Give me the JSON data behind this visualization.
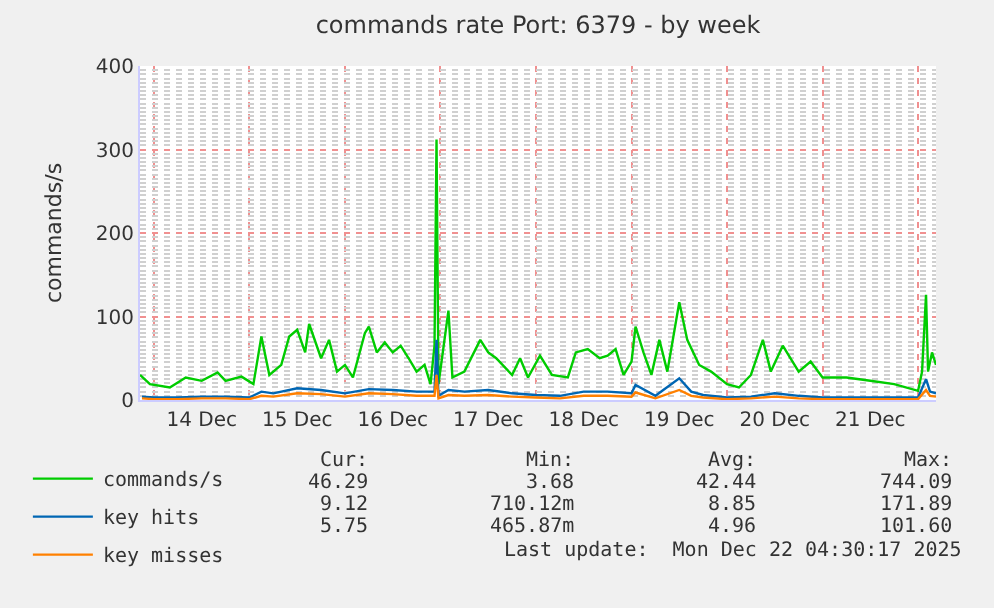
{
  "chart_data": {
    "type": "line",
    "title": "commands rate Port: 6379 - by week",
    "ylabel": "commands/s",
    "xlim": [
      "2025-12-13T20:30",
      "2025-12-22T04:30"
    ],
    "xticks": [
      {
        "value": "2025-12-14T12:00",
        "label": "14 Dec"
      },
      {
        "value": "2025-12-15T12:00",
        "label": "15 Dec"
      },
      {
        "value": "2025-12-16T12:00",
        "label": "16 Dec"
      },
      {
        "value": "2025-12-17T12:00",
        "label": "17 Dec"
      },
      {
        "value": "2025-12-18T12:00",
        "label": "18 Dec"
      },
      {
        "value": "2025-12-19T12:00",
        "label": "19 Dec"
      },
      {
        "value": "2025-12-20T12:00",
        "label": "20 Dec"
      },
      {
        "value": "2025-12-21T12:00",
        "label": "21 Dec"
      }
    ],
    "ylim": [
      0,
      400
    ],
    "yticks": [
      0,
      100,
      200,
      300,
      400
    ],
    "grid": true,
    "legend": "bottom",
    "marker": "none",
    "line_style": "solid",
    "series": [
      {
        "name": "commands/s",
        "color": "#00cc00",
        "x": [
          "2025-12-13T20:30",
          "2025-12-13T23:00",
          "2025-12-14T04:00",
          "2025-12-14T08:00",
          "2025-12-14T12:00",
          "2025-12-14T16:00",
          "2025-12-14T18:00",
          "2025-12-14T22:00",
          "2025-12-15T01:00",
          "2025-12-15T03:00",
          "2025-12-15T05:00",
          "2025-12-15T08:00",
          "2025-12-15T10:00",
          "2025-12-15T12:00",
          "2025-12-15T14:00",
          "2025-12-15T15:00",
          "2025-12-15T18:00",
          "2025-12-15T20:00",
          "2025-12-15T22:00",
          "2025-12-16T00:00",
          "2025-12-16T02:00",
          "2025-12-16T05:00",
          "2025-12-16T06:00",
          "2025-12-16T08:00",
          "2025-12-16T10:00",
          "2025-12-16T12:00",
          "2025-12-16T14:00",
          "2025-12-16T16:00",
          "2025-12-16T18:00",
          "2025-12-16T20:00",
          "2025-12-16T21:30",
          "2025-12-16T22:30",
          "2025-12-16T23:00",
          "2025-12-16T23:30",
          "2025-12-17T02:00",
          "2025-12-17T03:00",
          "2025-12-17T06:00",
          "2025-12-17T10:00",
          "2025-12-17T12:00",
          "2025-12-17T14:00",
          "2025-12-17T18:00",
          "2025-12-17T20:00",
          "2025-12-17T22:00",
          "2025-12-18T01:00",
          "2025-12-18T04:00",
          "2025-12-18T08:00",
          "2025-12-18T10:00",
          "2025-12-18T13:00",
          "2025-12-18T16:00",
          "2025-12-18T18:00",
          "2025-12-18T20:00",
          "2025-12-18T22:00",
          "2025-12-19T00:00",
          "2025-12-19T01:00",
          "2025-12-19T03:00",
          "2025-12-19T05:00",
          "2025-12-19T07:00",
          "2025-12-19T09:00",
          "2025-12-19T12:00",
          "2025-12-19T14:00",
          "2025-12-19T17:00",
          "2025-12-19T20:00",
          "2025-12-20T00:00",
          "2025-12-20T03:00",
          "2025-12-20T06:00",
          "2025-12-20T09:00",
          "2025-12-20T11:00",
          "2025-12-20T14:00",
          "2025-12-20T18:00",
          "2025-12-20T21:00",
          "2025-12-21T00:00",
          "2025-12-21T06:00",
          "2025-12-21T12:00",
          "2025-12-21T18:00",
          "2025-12-22T00:00",
          "2025-12-22T01:00",
          "2025-12-22T02:00",
          "2025-12-22T02:30",
          "2025-12-22T03:30",
          "2025-12-22T04:30"
        ],
        "values": [
          30,
          19,
          15,
          27,
          23,
          33,
          23,
          28,
          19,
          76,
          30,
          42,
          76,
          84,
          57,
          91,
          50,
          72,
          34,
          42,
          27,
          80,
          88,
          57,
          69,
          57,
          65,
          50,
          34,
          42,
          19,
          65,
          312,
          19,
          107,
          27,
          34,
          72,
          57,
          50,
          30,
          50,
          27,
          53,
          30,
          27,
          57,
          61,
          50,
          53,
          61,
          30,
          46,
          88,
          57,
          30,
          72,
          34,
          117,
          72,
          42,
          34,
          19,
          15,
          30,
          72,
          34,
          65,
          34,
          46,
          27,
          27,
          23,
          19,
          11,
          34,
          126,
          34,
          57,
          42
        ]
      },
      {
        "name": "key hits",
        "color": "#0066b3",
        "x": [
          "2025-12-13T21:00",
          "2025-12-14T00:00",
          "2025-12-14T06:00",
          "2025-12-14T12:00",
          "2025-12-14T18:00",
          "2025-12-15T00:00",
          "2025-12-15T03:00",
          "2025-12-15T06:00",
          "2025-12-15T12:00",
          "2025-12-15T18:00",
          "2025-12-16T00:00",
          "2025-12-16T06:00",
          "2025-12-16T12:00",
          "2025-12-16T18:00",
          "2025-12-16T22:30",
          "2025-12-16T23:00",
          "2025-12-16T23:30",
          "2025-12-17T02:00",
          "2025-12-17T06:00",
          "2025-12-17T12:00",
          "2025-12-17T18:00",
          "2025-12-18T00:00",
          "2025-12-18T06:00",
          "2025-12-18T12:00",
          "2025-12-18T18:00",
          "2025-12-19T00:00",
          "2025-12-19T01:00",
          "2025-12-19T06:00",
          "2025-12-19T12:00",
          "2025-12-19T15:00",
          "2025-12-19T18:00",
          "2025-12-20T00:00",
          "2025-12-20T06:00",
          "2025-12-20T12:00",
          "2025-12-20T18:00",
          "2025-12-21T00:00",
          "2025-12-21T12:00",
          "2025-12-22T00:00",
          "2025-12-22T02:00",
          "2025-12-22T03:00",
          "2025-12-22T04:30"
        ],
        "values": [
          4,
          3,
          3,
          4,
          4,
          3,
          10,
          8,
          14,
          12,
          8,
          13,
          12,
          10,
          10,
          72,
          5,
          12,
          10,
          12,
          8,
          6,
          5,
          10,
          10,
          8,
          18,
          5,
          26,
          10,
          6,
          3,
          4,
          8,
          5,
          3,
          3,
          3,
          25,
          10,
          8
        ]
      },
      {
        "name": "key misses",
        "color": "#ff8000",
        "x": [
          "2025-12-13T21:00",
          "2025-12-14T00:00",
          "2025-12-14T06:00",
          "2025-12-14T12:00",
          "2025-12-14T18:00",
          "2025-12-15T00:00",
          "2025-12-15T03:00",
          "2025-12-15T06:00",
          "2025-12-15T12:00",
          "2025-12-15T18:00",
          "2025-12-16T00:00",
          "2025-12-16T06:00",
          "2025-12-16T12:00",
          "2025-12-16T18:00",
          "2025-12-16T22:30",
          "2025-12-16T23:00",
          "2025-12-16T23:30",
          "2025-12-17T02:00",
          "2025-12-17T06:00",
          "2025-12-17T12:00",
          "2025-12-17T18:00",
          "2025-12-18T00:00",
          "2025-12-18T06:00",
          "2025-12-18T12:00",
          "2025-12-18T18:00",
          "2025-12-19T00:00",
          "2025-12-19T01:00",
          "2025-12-19T06:00",
          "2025-12-19T12:00",
          "2025-12-19T15:00",
          "2025-12-19T18:00",
          "2025-12-20T00:00",
          "2025-12-20T06:00",
          "2025-12-20T12:00",
          "2025-12-20T18:00",
          "2025-12-21T00:00",
          "2025-12-21T12:00",
          "2025-12-22T00:00",
          "2025-12-22T02:00",
          "2025-12-22T03:00",
          "2025-12-22T04:30"
        ],
        "values": [
          2,
          1,
          1,
          2,
          2,
          1,
          5,
          4,
          8,
          7,
          4,
          8,
          7,
          5,
          5,
          30,
          2,
          6,
          5,
          6,
          4,
          3,
          2,
          5,
          5,
          4,
          9,
          2,
          12,
          5,
          3,
          1,
          2,
          4,
          2,
          1,
          1,
          1,
          12,
          5,
          4
        ]
      }
    ],
    "annotations": [
      "Cur:",
      "Min:",
      "Avg:",
      "Max:",
      "46.29",
      "3.68",
      "42.44",
      "744.09",
      "9.12",
      "710.12m",
      "8.85",
      "171.89",
      "5.75",
      "465.87m",
      "4.96",
      "101.60",
      "Last update:  Mon Dec 22 04:30:17 2025"
    ]
  }
}
